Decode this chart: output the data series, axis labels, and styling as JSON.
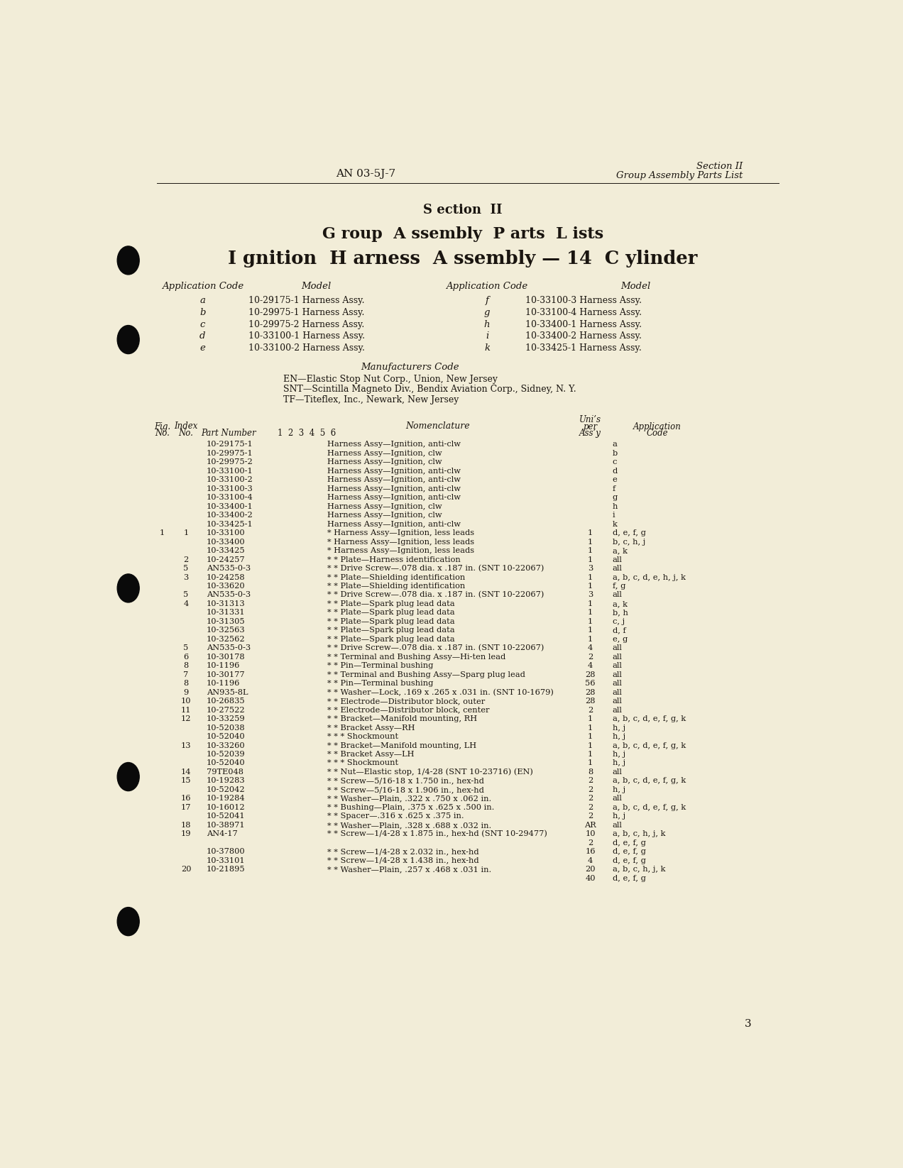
{
  "bg_color": "#f2edd8",
  "text_color": "#1a1510",
  "header_left": "AN 03-5J-7",
  "header_right_line1": "Section II",
  "header_right_line2": "Group Assembly Parts List",
  "title_line1": "S ection  II",
  "title_line2": "G roup  A ssembly  P arts  L ists",
  "title_line3": "I gnition  H arness  A ssembly — 14  C ylinder",
  "app_code_header_L": "Application Code",
  "model_header_L": "Model",
  "app_code_header_R": "Application Code",
  "model_header_R": "Model",
  "app_codes_left": [
    "a",
    "b",
    "c",
    "d",
    "e"
  ],
  "models_left": [
    "10-29175-1 Harness Assy.",
    "10-29975-1 Harness Assy.",
    "10-29975-2 Harness Assy.",
    "10-33100-1 Harness Assy.",
    "10-33100-2 Harness Assy."
  ],
  "app_codes_right": [
    "f",
    "g",
    "h",
    "i",
    "k"
  ],
  "models_right": [
    "10-33100-3 Harness Assy.",
    "10-33100-4 Harness Assy.",
    "10-33400-1 Harness Assy.",
    "10-33400-2 Harness Assy.",
    "10-33425-1 Harness Assy."
  ],
  "mfr_code_header": "Manufacturers Code",
  "mfr_codes": [
    "EN—Elastic Stop Nut Corp., Union, New Jersey",
    "SNT—Scintilla Magneto Div., Bendix Aviation Corp., Sidney, N. Y.",
    "TF—Titeflex, Inc., Newark, New Jersey"
  ],
  "hole_punch_y": [
    220,
    365,
    820,
    1165,
    1430
  ],
  "table_rows": [
    [
      "",
      "",
      "10-29175-1",
      "Harness Assy—Ignition, anti-clw",
      "",
      "a"
    ],
    [
      "",
      "",
      "10-29975-1",
      "Harness Assy—Ignition, clw",
      "",
      "b"
    ],
    [
      "",
      "",
      "10-29975-2",
      "Harness Assy—Ignition, clw",
      "",
      "c"
    ],
    [
      "",
      "",
      "10-33100-1",
      "Harness Assy—Ignition, anti-clw",
      "",
      "d"
    ],
    [
      "",
      "",
      "10-33100-2",
      "Harness Assy—Ignition, anti-clw",
      "",
      "e"
    ],
    [
      "",
      "",
      "10-33100-3",
      "Harness Assy—Ignition, anti-clw",
      "",
      "f"
    ],
    [
      "",
      "",
      "10-33100-4",
      "Harness Assy—Ignition, anti-clw",
      "",
      "g"
    ],
    [
      "",
      "",
      "10-33400-1",
      "Harness Assy—Ignition, clw",
      "",
      "h"
    ],
    [
      "",
      "",
      "10-33400-2",
      "Harness Assy—Ignition, clw",
      "",
      "i"
    ],
    [
      "",
      "",
      "10-33425-1",
      "Harness Assy—Ignition, anti-clw",
      "",
      "k"
    ],
    [
      "1",
      "1",
      "10-33100",
      "* Harness Assy—Ignition, less leads",
      "1",
      "d, e, f, g"
    ],
    [
      "",
      "",
      "10-33400",
      "* Harness Assy—Ignition, less leads",
      "1",
      "b, c, h, j"
    ],
    [
      "",
      "",
      "10-33425",
      "* Harness Assy—Ignition, less leads",
      "1",
      "a, k"
    ],
    [
      "",
      "2",
      "10-24257",
      "* * Plate—Harness identification",
      "1",
      "all"
    ],
    [
      "",
      "5",
      "AN535-0-3",
      "* * Drive Screw—.078 dia. x .187 in. (SNT 10-22067)",
      "3",
      "all"
    ],
    [
      "",
      "3",
      "10-24258",
      "* * Plate—Shielding identification",
      "1",
      "a, b, c, d, e, h, j, k"
    ],
    [
      "",
      "",
      "10-33620",
      "* * Plate—Shielding identification",
      "1",
      "f, g"
    ],
    [
      "",
      "5",
      "AN535-0-3",
      "* * Drive Screw—.078 dia. x .187 in. (SNT 10-22067)",
      "3",
      "all"
    ],
    [
      "",
      "4",
      "10-31313",
      "* * Plate—Spark plug lead data",
      "1",
      "a, k"
    ],
    [
      "",
      "",
      "10-31331",
      "* * Plate—Spark plug lead data",
      "1",
      "b, h"
    ],
    [
      "",
      "",
      "10-31305",
      "* * Plate—Spark plug lead data",
      "1",
      "c, j"
    ],
    [
      "",
      "",
      "10-32563",
      "* * Plate—Spark plug lead data",
      "1",
      "d, f"
    ],
    [
      "",
      "",
      "10-32562",
      "* * Plate—Spark plug lead data",
      "1",
      "e, g"
    ],
    [
      "",
      "5",
      "AN535-0-3",
      "* * Drive Screw—.078 dia. x .187 in. (SNT 10-22067)",
      "4",
      "all"
    ],
    [
      "",
      "6",
      "10-30178",
      "* * Terminal and Bushing Assy—Hi-ten lead",
      "2",
      "all"
    ],
    [
      "",
      "8",
      "10-1196",
      "* * Pin—Terminal bushing",
      "4",
      "all"
    ],
    [
      "",
      "7",
      "10-30177",
      "* * Terminal and Bushing Assy—Sparg plug lead",
      "28",
      "all"
    ],
    [
      "",
      "8",
      "10-1196",
      "* * Pin—Terminal bushing",
      "56",
      "all"
    ],
    [
      "",
      "9",
      "AN935-8L",
      "* * Washer—Lock, .169 x .265 x .031 in. (SNT 10-1679)",
      "28",
      "all"
    ],
    [
      "",
      "10",
      "10-26835",
      "* * Electrode—Distributor block, outer",
      "28",
      "all"
    ],
    [
      "",
      "11",
      "10-27522",
      "* * Electrode—Distributor block, center",
      "2",
      "all"
    ],
    [
      "",
      "12",
      "10-33259",
      "* * Bracket—Manifold mounting, RH",
      "1",
      "a, b, c, d, e, f, g, k"
    ],
    [
      "",
      "",
      "10-52038",
      "* * Bracket Assy—RH",
      "1",
      "h, j"
    ],
    [
      "",
      "",
      "10-52040",
      "* * * Shockmount",
      "1",
      "h, j"
    ],
    [
      "",
      "13",
      "10-33260",
      "* * Bracket—Manifold mounting, LH",
      "1",
      "a, b, c, d, e, f, g, k"
    ],
    [
      "",
      "",
      "10-52039",
      "* * Bracket Assy—LH",
      "1",
      "h, j"
    ],
    [
      "",
      "",
      "10-52040",
      "* * * Shockmount",
      "1",
      "h, j"
    ],
    [
      "",
      "14",
      "79TE048",
      "* * Nut—Elastic stop, 1/4-28 (SNT 10-23716) (EN)",
      "8",
      "all"
    ],
    [
      "",
      "15",
      "10-19283",
      "* * Screw—5/16-18 x 1.750 in., hex-hd",
      "2",
      "a, b, c, d, e, f, g, k"
    ],
    [
      "",
      "",
      "10-52042",
      "* * Screw—5/16-18 x 1.906 in., hex-hd",
      "2",
      "h, j"
    ],
    [
      "",
      "16",
      "10-19284",
      "* * Washer—Plain, .322 x .750 x .062 in.",
      "2",
      "all"
    ],
    [
      "",
      "17",
      "10-16012",
      "* * Bushing—Plain, .375 x .625 x .500 in.",
      "2",
      "a, b, c, d, e, f, g, k"
    ],
    [
      "",
      "",
      "10-52041",
      "* * Spacer—.316 x .625 x .375 in.",
      "2",
      "h, j"
    ],
    [
      "",
      "18",
      "10-38971",
      "* * Washer—Plain, .328 x .688 x .032 in.",
      "AR",
      "all"
    ],
    [
      "",
      "19",
      "AN4-17",
      "* * Screw—1/4-28 x 1.875 in., hex-hd (SNT 10-29477)",
      "10",
      "a, b, c, h, j, k"
    ],
    [
      "",
      "",
      "",
      "",
      "2",
      "d, e, f, g"
    ],
    [
      "",
      "",
      "10-37800",
      "* * Screw—1/4-28 x 2.032 in., hex-hd",
      "16",
      "d, e, f, g"
    ],
    [
      "",
      "",
      "10-33101",
      "* * Screw—1/4-28 x 1.438 in., hex-hd",
      "4",
      "d, e, f, g"
    ],
    [
      "",
      "20",
      "10-21895",
      "* * Washer—Plain, .257 x .468 x .031 in.",
      "20",
      "a, b, c, h, j, k"
    ],
    [
      "",
      "",
      "",
      "",
      "40",
      "d, e, f, g"
    ]
  ],
  "page_number": "3"
}
